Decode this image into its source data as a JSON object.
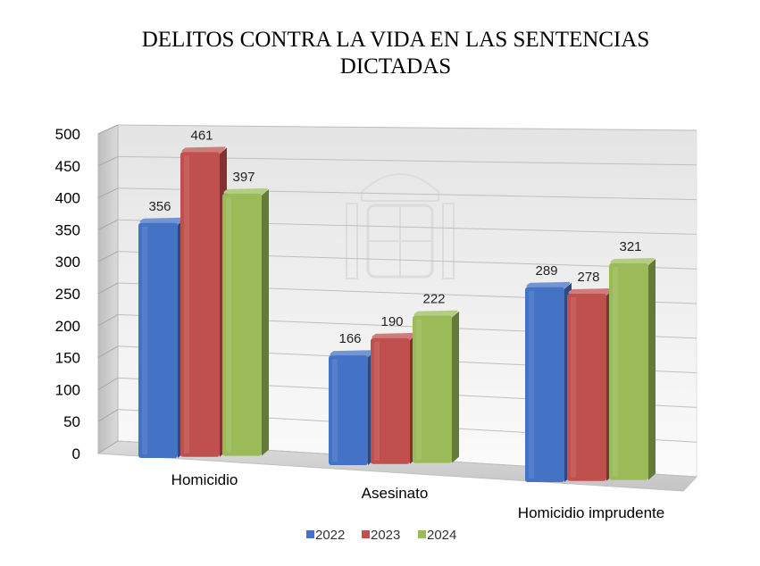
{
  "chart_data": {
    "type": "bar",
    "title": "DELITOS CONTRA LA VIDA EN LAS SENTENCIAS DICTADAS",
    "title_lines": [
      "DELITOS CONTRA LA VIDA EN LAS SENTENCIAS",
      "DICTADAS"
    ],
    "categories": [
      "Homicidio",
      "Asesinato",
      "Homicidio imprudente"
    ],
    "series": [
      {
        "name": "2022",
        "values": [
          356,
          166,
          289
        ],
        "color": "#4472c4"
      },
      {
        "name": "2023",
        "values": [
          461,
          190,
          278
        ],
        "color": "#c0504d"
      },
      {
        "name": "2024",
        "values": [
          397,
          222,
          321
        ],
        "color": "#9bbb59"
      }
    ],
    "ylim": [
      0,
      500
    ],
    "yticks": [
      0,
      50,
      100,
      150,
      200,
      250,
      300,
      350,
      400,
      450,
      500
    ],
    "xlabel": "",
    "ylabel": "",
    "grid": true,
    "legend_position": "bottom",
    "three_d": true
  }
}
